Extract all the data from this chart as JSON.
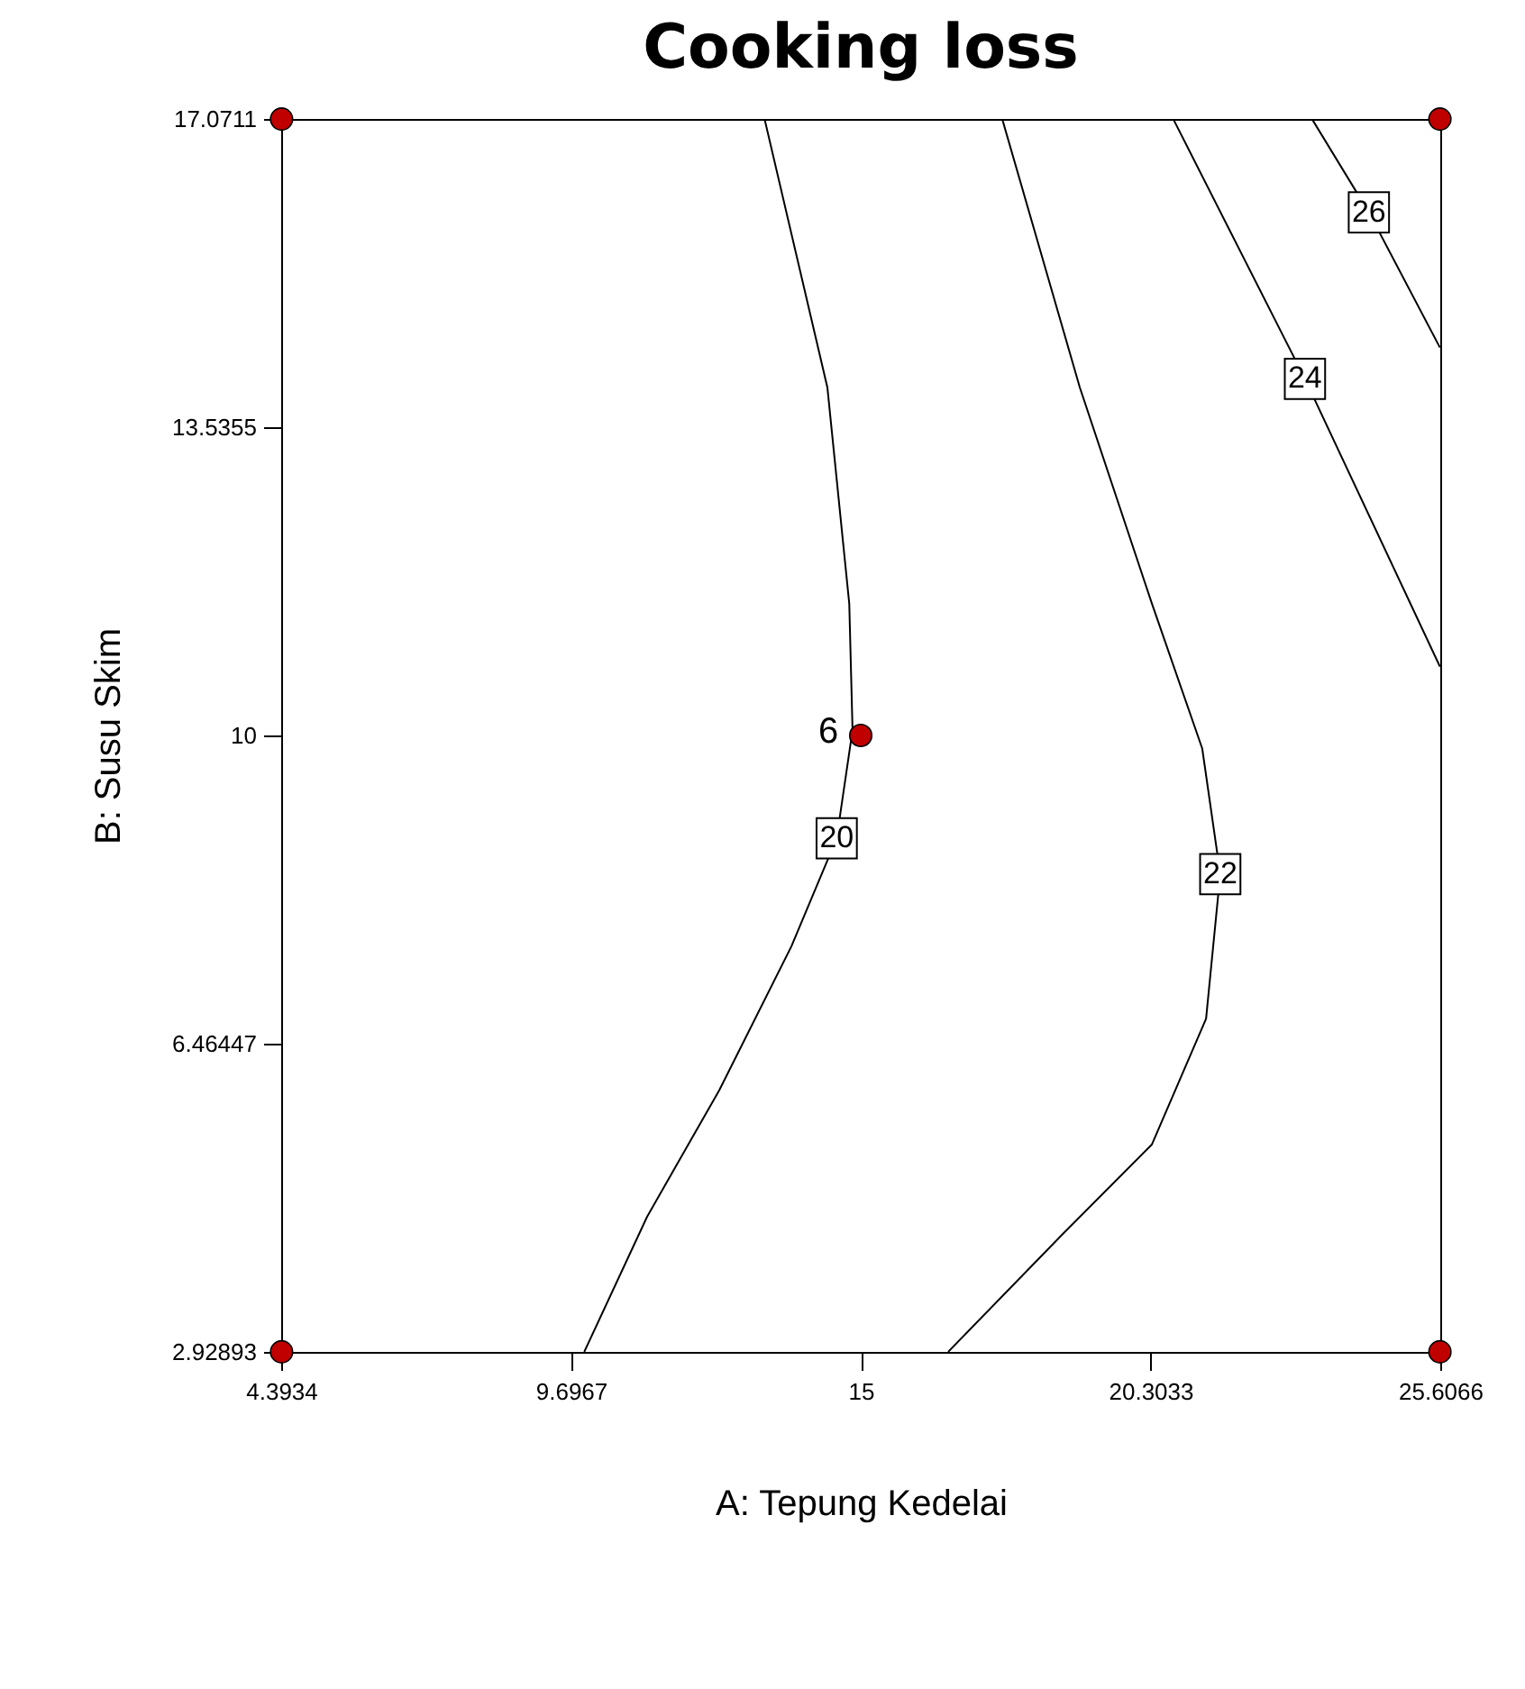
{
  "chart_data": {
    "type": "line",
    "title": "Cooking loss",
    "xlabel": "A: Tepung Kedelai",
    "ylabel": "B: Susu Skim",
    "xlim": [
      4.3934,
      25.6066
    ],
    "ylim": [
      2.92893,
      17.0711
    ],
    "xticks": [
      4.3934,
      9.6967,
      15,
      20.3033,
      25.6066
    ],
    "yticks": [
      2.92893,
      6.46447,
      10,
      13.5355,
      17.0711
    ],
    "grid": false,
    "line_style": "solid",
    "series": [
      {
        "name": "20",
        "color": "#000000",
        "x": [
          13.24,
          14.39,
          14.79,
          14.85,
          14.56,
          13.73,
          12.41,
          11.09,
          9.94
        ],
        "values": [
          17.07,
          13.99,
          11.51,
          10.06,
          8.82,
          7.58,
          5.93,
          4.48,
          2.93
        ]
      },
      {
        "name": "22",
        "color": "#000000",
        "x": [
          17.59,
          19.01,
          20.33,
          21.25,
          21.58,
          21.32,
          20.33,
          18.68,
          16.6
        ],
        "values": [
          17.07,
          13.99,
          11.51,
          9.85,
          8.41,
          6.75,
          5.31,
          4.27,
          2.93
        ]
      },
      {
        "name": "24",
        "color": "#000000",
        "x": [
          20.72,
          23.13,
          25.6
        ],
        "values": [
          17.07,
          14.09,
          10.79
        ]
      },
      {
        "name": "26",
        "color": "#000000",
        "x": [
          23.26,
          24.3,
          25.6
        ],
        "values": [
          17.07,
          16.0,
          14.45
        ]
      },
      {
        "type": "scatter",
        "marker": "circle",
        "color": "#c00000",
        "x": [
          4.4,
          25.6,
          4.4,
          25.6,
          15
        ],
        "values": [
          17.07,
          17.07,
          2.93,
          2.93,
          10
        ]
      }
    ],
    "annotations": [
      {
        "text": "6",
        "x": 15,
        "y": 10
      }
    ]
  }
}
